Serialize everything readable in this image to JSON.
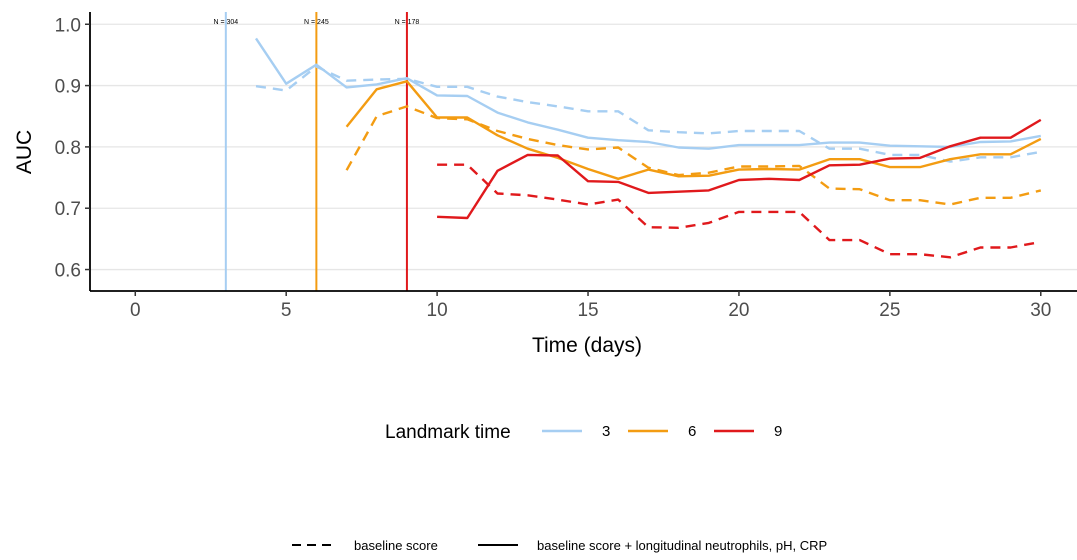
{
  "chart_data": {
    "type": "line",
    "title": "",
    "xlabel": "Time (days)",
    "ylabel": "AUC",
    "xlim": [
      -1.5,
      31.2
    ],
    "ylim": [
      0.565,
      1.02
    ],
    "x_ticks": [
      0,
      5,
      10,
      15,
      20,
      25,
      30
    ],
    "y_ticks": [
      0.6,
      0.7,
      0.8,
      0.9,
      1.0
    ],
    "y_tick_labels": [
      "0.6",
      "0.7",
      "0.8",
      "0.9",
      "1.0"
    ],
    "grid": "horizontal",
    "landmarks": [
      {
        "time": 3,
        "label": "N = 304",
        "color": "#A6CEF2"
      },
      {
        "time": 6,
        "label": "N = 245",
        "color": "#F39C12"
      },
      {
        "time": 9,
        "label": "N = 178",
        "color": "#E0191C"
      }
    ],
    "legend_color": {
      "title": "Landmark time",
      "entries": [
        {
          "label": "3",
          "color": "#A6CEF2"
        },
        {
          "label": "6",
          "color": "#F39C12"
        },
        {
          "label": "9",
          "color": "#E0191C"
        }
      ]
    },
    "legend_linetype": {
      "entries": [
        {
          "label": "baseline score",
          "dash": "dashed"
        },
        {
          "label": "baseline score + longitudinal neutrophils, pH, CRP",
          "dash": "solid"
        }
      ]
    },
    "series": [
      {
        "landmark": "3",
        "linetype": "solid",
        "color": "#A6CEF2",
        "x": [
          4,
          5,
          6,
          7,
          8,
          9,
          10,
          11,
          12,
          13,
          14,
          15,
          16,
          17,
          18,
          19,
          20,
          21,
          22,
          23,
          24,
          25,
          26,
          27,
          28,
          29,
          30
        ],
        "y": [
          0.977,
          0.903,
          0.934,
          0.897,
          0.902,
          0.912,
          0.884,
          0.883,
          0.856,
          0.84,
          0.828,
          0.815,
          0.811,
          0.808,
          0.799,
          0.797,
          0.803,
          0.803,
          0.803,
          0.807,
          0.807,
          0.802,
          0.801,
          0.8,
          0.808,
          0.809,
          0.818
        ]
      },
      {
        "landmark": "3",
        "linetype": "dashed",
        "color": "#A6CEF2",
        "x": [
          4,
          5,
          6,
          7,
          8,
          9,
          10,
          11,
          12,
          13,
          14,
          15,
          16,
          17,
          18,
          19,
          20,
          21,
          22,
          23,
          24,
          25,
          26,
          27,
          28,
          29,
          30
        ],
        "y": [
          0.899,
          0.892,
          0.931,
          0.908,
          0.91,
          0.911,
          0.898,
          0.898,
          0.882,
          0.873,
          0.866,
          0.858,
          0.858,
          0.827,
          0.824,
          0.822,
          0.826,
          0.826,
          0.826,
          0.797,
          0.797,
          0.787,
          0.787,
          0.776,
          0.783,
          0.783,
          0.792
        ]
      },
      {
        "landmark": "6",
        "linetype": "solid",
        "color": "#F39C12",
        "x": [
          7,
          8,
          9,
          10,
          11,
          12,
          13,
          14,
          15,
          16,
          17,
          18,
          19,
          20,
          21,
          22,
          23,
          24,
          25,
          26,
          27,
          28,
          29,
          30
        ],
        "y": [
          0.833,
          0.894,
          0.907,
          0.848,
          0.848,
          0.819,
          0.797,
          0.782,
          0.764,
          0.748,
          0.763,
          0.752,
          0.753,
          0.763,
          0.764,
          0.763,
          0.78,
          0.78,
          0.767,
          0.767,
          0.78,
          0.788,
          0.788,
          0.813
        ]
      },
      {
        "landmark": "6",
        "linetype": "dashed",
        "color": "#F39C12",
        "x": [
          7,
          8,
          9,
          10,
          11,
          12,
          13,
          14,
          15,
          16,
          17,
          18,
          19,
          20,
          21,
          22,
          23,
          24,
          25,
          26,
          27,
          28,
          29,
          30
        ],
        "y": [
          0.762,
          0.85,
          0.866,
          0.847,
          0.845,
          0.826,
          0.813,
          0.803,
          0.796,
          0.799,
          0.766,
          0.754,
          0.758,
          0.768,
          0.768,
          0.769,
          0.732,
          0.731,
          0.713,
          0.713,
          0.706,
          0.717,
          0.717,
          0.729
        ]
      },
      {
        "landmark": "9",
        "linetype": "solid",
        "color": "#E0191C",
        "x": [
          10,
          11,
          12,
          13,
          14,
          15,
          16,
          17,
          18,
          19,
          20,
          21,
          22,
          23,
          24,
          25,
          26,
          27,
          28,
          29,
          30
        ],
        "y": [
          0.686,
          0.684,
          0.761,
          0.787,
          0.786,
          0.744,
          0.743,
          0.725,
          0.727,
          0.729,
          0.746,
          0.748,
          0.746,
          0.77,
          0.771,
          0.781,
          0.782,
          0.801,
          0.815,
          0.815,
          0.844
        ]
      },
      {
        "landmark": "9",
        "linetype": "dashed",
        "color": "#E0191C",
        "x": [
          10,
          11,
          12,
          13,
          14,
          15,
          16,
          17,
          18,
          19,
          20,
          21,
          22,
          23,
          24,
          25,
          26,
          27,
          28,
          29,
          30
        ],
        "y": [
          0.771,
          0.771,
          0.724,
          0.721,
          0.714,
          0.706,
          0.714,
          0.669,
          0.668,
          0.676,
          0.694,
          0.694,
          0.694,
          0.648,
          0.648,
          0.625,
          0.625,
          0.62,
          0.636,
          0.636,
          0.645
        ]
      }
    ]
  }
}
